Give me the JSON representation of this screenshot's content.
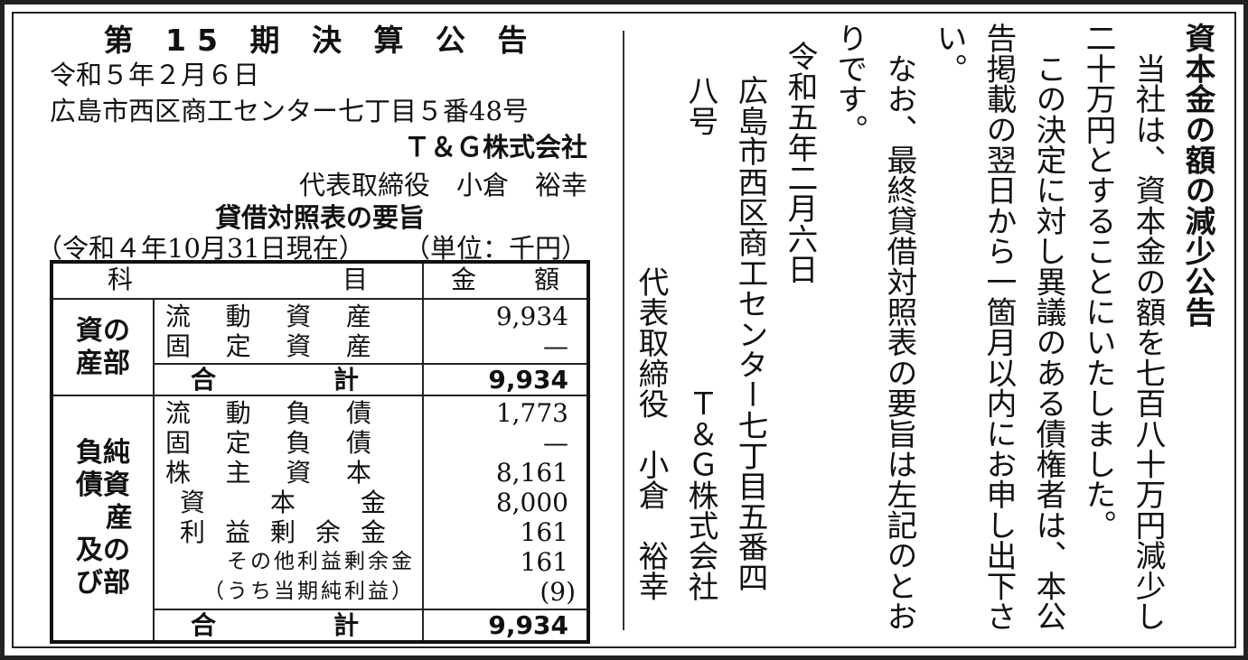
{
  "settlement": {
    "title": "第 15 期 決 算 公 告",
    "date": "令和５年２月６日",
    "address": "広島市西区商工センター七丁目５番48号",
    "company": "Ｔ＆Ｇ株式会社",
    "representative": "代表取締役　小倉　裕幸",
    "bs_title": "貸借対照表の要旨",
    "as_of": "（令和４年10月31日現在）",
    "unit": "（単位：千円）",
    "table": {
      "header": {
        "item_a": "科",
        "item_b": "目",
        "amount_a": "金",
        "amount_b": "額"
      },
      "assets_section": [
        "資の",
        "産部"
      ],
      "assets": [
        {
          "chars": [
            "流",
            "動",
            "資",
            "産"
          ],
          "value": "9,934"
        },
        {
          "chars": [
            "固",
            "定",
            "資",
            "産"
          ],
          "value": "—"
        }
      ],
      "assets_total": {
        "chars": [
          "合",
          "計"
        ],
        "value": "9,934"
      },
      "liab_section": [
        "負純",
        "債資",
        "産",
        "及の",
        "び部"
      ],
      "liabilities": [
        {
          "chars": [
            "流",
            "動",
            "負",
            "債"
          ],
          "value": "1,773"
        },
        {
          "chars": [
            "固",
            "定",
            "負",
            "債"
          ],
          "value": "—"
        },
        {
          "chars": [
            "株",
            "主",
            "資",
            "本"
          ],
          "value": "8,161"
        },
        {
          "chars": [
            "資",
            "本",
            "金"
          ],
          "value": "8,000"
        },
        {
          "chars": [
            "利",
            "益",
            "剰",
            "余",
            "金"
          ],
          "value": "161"
        },
        {
          "chars": [
            "その他利益剰余金"
          ],
          "value": "161"
        },
        {
          "chars": [
            "（うち当期純利益）"
          ],
          "value": "(9)"
        }
      ],
      "liab_total": {
        "chars": [
          "合",
          "計"
        ],
        "value": "9,934"
      }
    }
  },
  "notice": {
    "title": "資本金の額の減少公告",
    "body": [
      "　当社は、資本金の額を七百八十万円減少し",
      "二十万円とすることにいたしました。",
      "　この決定に対し異議のある債権者は、本公",
      "告掲載の翌日から一箇月以内にお申し出下さ",
      "い。",
      "　なお、最終貸借対照表の要旨は左記のとお",
      "りです。"
    ],
    "date": "令和五年二月六日",
    "address_1": "広島市西区商工センター七丁目五番四",
    "address_2": "八号",
    "company": "Ｔ＆Ｇ株式会社",
    "representative": "代表取締役　小倉　裕幸"
  }
}
